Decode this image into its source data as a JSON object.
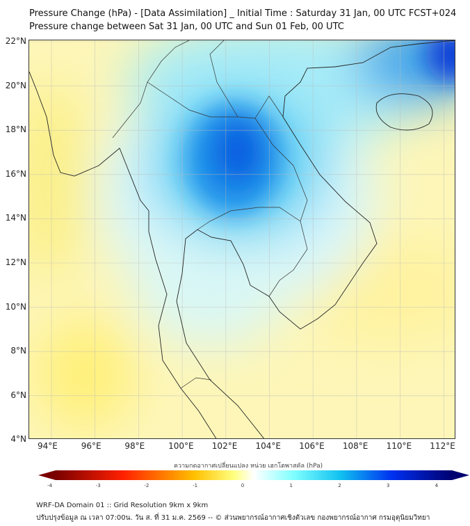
{
  "title": {
    "line1": "Pressure Change (hPa) - [Data Assimilation] _ Initial Time : Saturday 31 Jan, 00 UTC FCST+024",
    "line2": "Pressure change between Sat 31 Jan, 00 UTC and Sun 01 Feb, 00 UTC"
  },
  "map": {
    "lon_range": [
      93,
      112.6
    ],
    "lat_range": [
      4,
      22
    ],
    "lat_labels": [
      "22°N",
      "20°N",
      "18°N",
      "16°N",
      "14°N",
      "12°N",
      "10°N",
      "8°N",
      "6°N",
      "4°N"
    ],
    "lon_labels": [
      "94°E",
      "96°E",
      "98°E",
      "100°E",
      "102°E",
      "104°E",
      "106°E",
      "108°E",
      "110°E",
      "112°E"
    ],
    "max_rise_center": {
      "lon": 102.5,
      "lat": 17,
      "value_hpa": 3.5
    }
  },
  "colorbar": {
    "label": "ความกดอากาศเปลี่ยนแปลง หน่วย เฮกโตพาสคัล (hPa)",
    "ticks": [
      "-4",
      "-3",
      "-2",
      "-1",
      "0",
      "1",
      "2",
      "3",
      "4"
    ],
    "range": [
      -4,
      4
    ],
    "colors": [
      "#7a0000",
      "#ff2000",
      "#ffc000",
      "#ffff80",
      "#ffffff",
      "#80ffff",
      "#10c0f0",
      "#0030f0",
      "#000070"
    ]
  },
  "footer": {
    "line1": "WRF-DA Domain 01 :: Grid Resolution 9km x 9km",
    "line2": "ปรับปรุงข้อมูล ณ เวลา 07:00น. วัน ส. ที่ 31 ม.ค. 2569 -- © ส่วนพยากรณ์อากาศเชิงตัวเลข กองพยากรณ์อากาศ กรมอุตุนิยมวิทยา"
  }
}
